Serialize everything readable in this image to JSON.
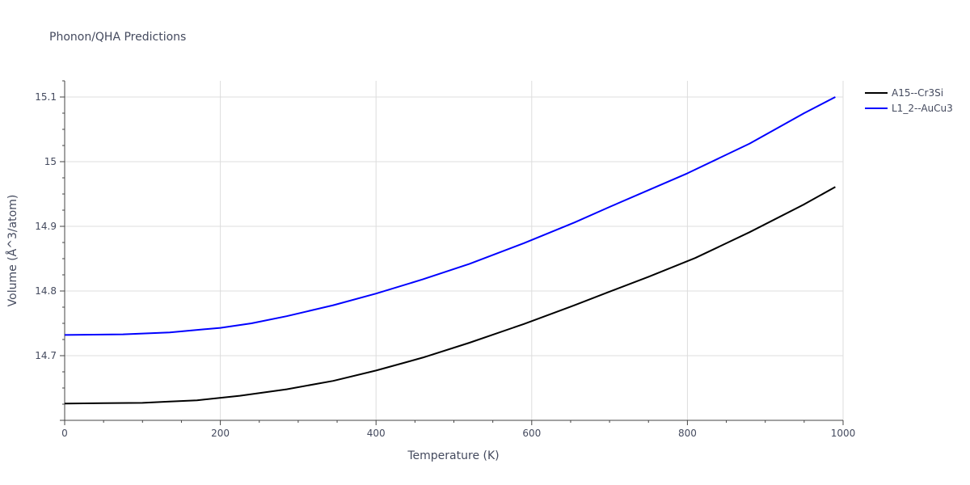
{
  "chart_data": {
    "type": "line",
    "title": "Phonon/QHA Predictions",
    "xlabel": "Temperature (K)",
    "ylabel": "Volume (Å^3/atom)",
    "xlim": [
      0,
      1000
    ],
    "ylim": [
      14.6,
      15.125
    ],
    "xticks": [
      0,
      200,
      400,
      600,
      800,
      1000
    ],
    "yticks": [
      14.7,
      14.8,
      14.9,
      15,
      15.1
    ],
    "xtick_labels": [
      "0",
      "200",
      "400",
      "600",
      "800",
      "1000"
    ],
    "ytick_labels": [
      "14.7",
      "14.8",
      "14.9",
      "15",
      "15.1"
    ],
    "grid": true,
    "legend_position": "top-right",
    "series": [
      {
        "name": "A15--Cr3Si",
        "color": "#000000",
        "x": [
          0,
          50,
          100,
          135,
          170,
          225,
          285,
          345,
          400,
          460,
          520,
          590,
          655,
          700,
          750,
          810,
          880,
          950,
          990
        ],
        "y": [
          14.626,
          14.6265,
          14.627,
          14.629,
          14.631,
          14.638,
          14.648,
          14.661,
          14.677,
          14.697,
          14.72,
          14.749,
          14.778,
          14.799,
          14.822,
          14.851,
          14.891,
          14.934,
          14.961
        ]
      },
      {
        "name": "L1_2--AuCu3",
        "color": "#0000ff",
        "x": [
          0,
          75,
          135,
          200,
          240,
          285,
          345,
          400,
          460,
          520,
          590,
          655,
          700,
          750,
          800,
          880,
          950,
          990
        ],
        "y": [
          14.732,
          14.733,
          14.736,
          14.743,
          14.75,
          14.761,
          14.778,
          14.796,
          14.818,
          14.842,
          14.874,
          14.906,
          14.93,
          14.956,
          14.982,
          15.028,
          15.075,
          15.1
        ]
      }
    ]
  }
}
